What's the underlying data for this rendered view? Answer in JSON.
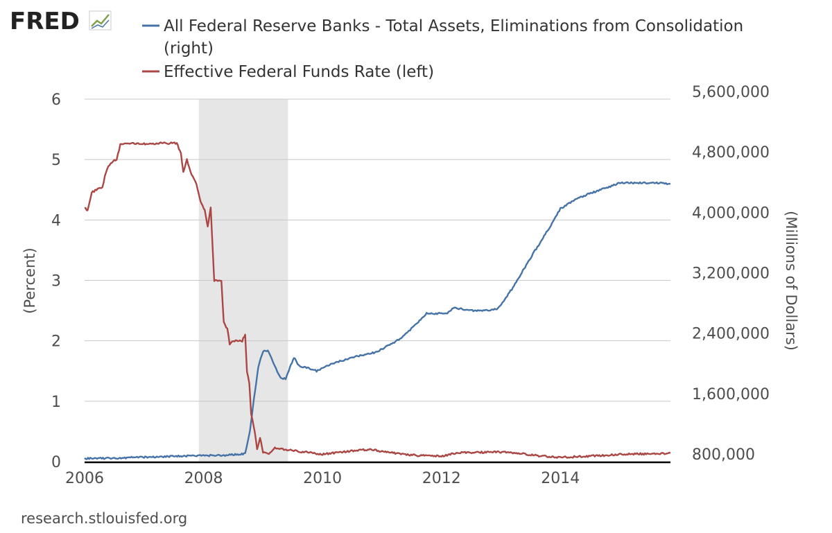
{
  "logo": {
    "text": "FRED"
  },
  "footer": {
    "source": "research.stlouisfed.org"
  },
  "colors": {
    "assets": "#4572a7",
    "fedfunds": "#aa4643",
    "recession": "#e6e6e6",
    "grid": "#c8c8c8",
    "axis": "#000000"
  },
  "chart_data": {
    "type": "line",
    "dual_axis": true,
    "legend": [
      {
        "line1": "All Federal Reserve Banks - Total Assets, Eliminations from Consolidation",
        "line2": "(right)"
      },
      {
        "line1": "Effective Federal Funds Rate (left)",
        "line2": ""
      }
    ],
    "ylabel_left": "(Percent)",
    "ylabel_right": "(Millions of Dollars)",
    "xlim": [
      2006.0,
      2015.85
    ],
    "ylim_left": [
      0,
      6
    ],
    "ylim_right": [
      800000,
      5600000
    ],
    "yticks_left": [
      0,
      1,
      2,
      3,
      4,
      5,
      6
    ],
    "yticks_right": [
      800000,
      1600000,
      2400000,
      3200000,
      4000000,
      4800000,
      5600000
    ],
    "ytick_labels_left": [
      "0",
      "1",
      "2",
      "3",
      "4",
      "5",
      "6"
    ],
    "ytick_labels_right": [
      "800,000",
      "1,600,000",
      "2,400,000",
      "3,200,000",
      "4,000,000",
      "4,800,000",
      "5,600,000"
    ],
    "xticks": [
      2006,
      2008,
      2010,
      2012,
      2014
    ],
    "xtick_labels": [
      "2006",
      "2008",
      "2010",
      "2012",
      "2014"
    ],
    "recession": [
      2007.92,
      2009.42
    ],
    "series": [
      {
        "name": "All Federal Reserve Banks - Total Assets, Eliminations from Consolidation",
        "axis": "right",
        "points": [
          [
            2006.0,
            840000
          ],
          [
            2006.5,
            845000
          ],
          [
            2007.0,
            860000
          ],
          [
            2007.5,
            870000
          ],
          [
            2008.0,
            880000
          ],
          [
            2008.4,
            885000
          ],
          [
            2008.7,
            905000
          ],
          [
            2008.78,
            1200000
          ],
          [
            2008.85,
            1650000
          ],
          [
            2008.92,
            2050000
          ],
          [
            2009.0,
            2260000
          ],
          [
            2009.08,
            2270000
          ],
          [
            2009.18,
            2100000
          ],
          [
            2009.3,
            1900000
          ],
          [
            2009.38,
            1900000
          ],
          [
            2009.45,
            2040000
          ],
          [
            2009.52,
            2180000
          ],
          [
            2009.6,
            2070000
          ],
          [
            2009.75,
            2040000
          ],
          [
            2009.9,
            2000000
          ],
          [
            2010.1,
            2080000
          ],
          [
            2010.5,
            2180000
          ],
          [
            2010.9,
            2250000
          ],
          [
            2011.3,
            2420000
          ],
          [
            2011.55,
            2600000
          ],
          [
            2011.75,
            2760000
          ],
          [
            2012.1,
            2760000
          ],
          [
            2012.2,
            2840000
          ],
          [
            2012.5,
            2800000
          ],
          [
            2012.8,
            2800000
          ],
          [
            2012.95,
            2830000
          ],
          [
            2013.2,
            3100000
          ],
          [
            2013.5,
            3500000
          ],
          [
            2013.8,
            3880000
          ],
          [
            2014.0,
            4150000
          ],
          [
            2014.3,
            4290000
          ],
          [
            2014.6,
            4380000
          ],
          [
            2014.8,
            4430000
          ],
          [
            2015.0,
            4490000
          ],
          [
            2015.3,
            4490000
          ],
          [
            2015.6,
            4490000
          ],
          [
            2015.85,
            4480000
          ]
        ]
      },
      {
        "name": "Effective Federal Funds Rate",
        "axis": "left",
        "points": [
          [
            2006.0,
            4.2
          ],
          [
            2006.05,
            4.15
          ],
          [
            2006.12,
            4.45
          ],
          [
            2006.2,
            4.5
          ],
          [
            2006.3,
            4.55
          ],
          [
            2006.36,
            4.8
          ],
          [
            2006.44,
            4.95
          ],
          [
            2006.54,
            5.0
          ],
          [
            2006.6,
            5.25
          ],
          [
            2006.8,
            5.27
          ],
          [
            2007.0,
            5.26
          ],
          [
            2007.3,
            5.27
          ],
          [
            2007.55,
            5.27
          ],
          [
            2007.62,
            5.1
          ],
          [
            2007.66,
            4.78
          ],
          [
            2007.72,
            5.0
          ],
          [
            2007.8,
            4.75
          ],
          [
            2007.88,
            4.6
          ],
          [
            2007.95,
            4.3
          ],
          [
            2008.02,
            4.15
          ],
          [
            2008.07,
            3.9
          ],
          [
            2008.12,
            4.2
          ],
          [
            2008.18,
            3.0
          ],
          [
            2008.3,
            2.99
          ],
          [
            2008.34,
            2.3
          ],
          [
            2008.4,
            2.2
          ],
          [
            2008.44,
            1.95
          ],
          [
            2008.52,
            2.0
          ],
          [
            2008.65,
            2.0
          ],
          [
            2008.7,
            2.1
          ],
          [
            2008.73,
            1.5
          ],
          [
            2008.77,
            1.3
          ],
          [
            2008.8,
            0.8
          ],
          [
            2008.86,
            0.5
          ],
          [
            2008.9,
            0.2
          ],
          [
            2008.95,
            0.4
          ],
          [
            2009.0,
            0.15
          ],
          [
            2009.1,
            0.12
          ],
          [
            2009.2,
            0.22
          ],
          [
            2009.5,
            0.18
          ],
          [
            2009.8,
            0.15
          ],
          [
            2010.0,
            0.12
          ],
          [
            2010.5,
            0.18
          ],
          [
            2010.8,
            0.2
          ],
          [
            2011.0,
            0.17
          ],
          [
            2011.3,
            0.13
          ],
          [
            2011.6,
            0.1
          ],
          [
            2012.0,
            0.09
          ],
          [
            2012.3,
            0.15
          ],
          [
            2012.6,
            0.15
          ],
          [
            2012.9,
            0.16
          ],
          [
            2013.2,
            0.15
          ],
          [
            2013.6,
            0.1
          ],
          [
            2014.0,
            0.07
          ],
          [
            2014.5,
            0.09
          ],
          [
            2015.0,
            0.12
          ],
          [
            2015.5,
            0.13
          ],
          [
            2015.85,
            0.14
          ]
        ]
      }
    ]
  }
}
